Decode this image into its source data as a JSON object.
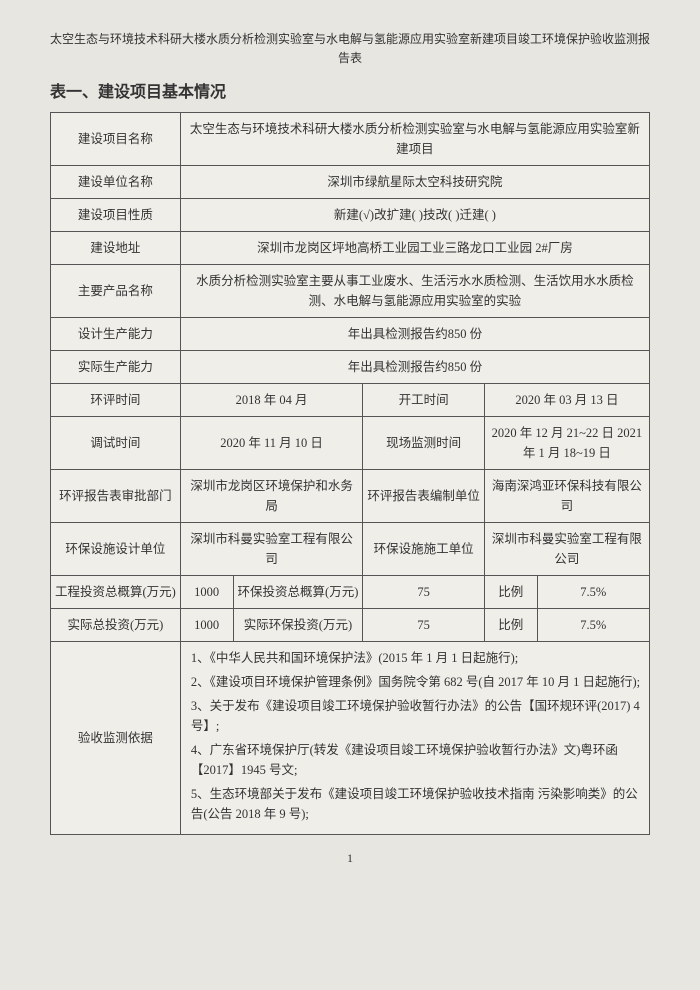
{
  "doc_header": "太空生态与环境技术科研大楼水质分析检测实验室与水电解与氢能源应用实验室新建项目竣工环境保护验收监测报告表",
  "table_title": "表一、建设项目基本情况",
  "rows": {
    "project_name_label": "建设项目名称",
    "project_name_value": "太空生态与环境技术科研大楼水质分析检测实验室与水电解与氢能源应用实验室新建项目",
    "unit_name_label": "建设单位名称",
    "unit_name_value": "深圳市绿航星际太空科技研究院",
    "nature_label": "建设项目性质",
    "nature_value": "新建(√)改扩建( )技改( )迁建( )",
    "address_label": "建设地址",
    "address_value": "深圳市龙岗区坪地高桥工业园工业三路龙口工业园 2#厂房",
    "product_label": "主要产品名称",
    "product_value": "水质分析检测实验室主要从事工业废水、生活污水水质检测、生活饮用水水质检测、水电解与氢能源应用实验室的实验",
    "design_cap_label": "设计生产能力",
    "design_cap_value": "年出具检测报告约850 份",
    "actual_cap_label": "实际生产能力",
    "actual_cap_value": "年出具检测报告约850 份",
    "eia_time_label": "环评时间",
    "eia_time_value": "2018 年 04 月",
    "start_time_label": "开工时间",
    "start_time_value": "2020 年 03 月 13 日",
    "debug_time_label": "调试时间",
    "debug_time_value": "2020 年 11 月 10 日",
    "onsite_time_label": "现场监测时间",
    "onsite_time_value": "2020 年 12 月 21~22 日 2021 年 1 月 18~19 日",
    "approve_dept_label": "环评报告表审批部门",
    "approve_dept_value": "深圳市龙岗区环境保护和水务局",
    "compile_unit_label": "环评报告表编制单位",
    "compile_unit_value": "海南深鸿亚环保科技有限公司",
    "design_unit_label": "环保设施设计单位",
    "design_unit_value": "深圳市科曼实验室工程有限公司",
    "construct_unit_label": "环保设施施工单位",
    "construct_unit_value": "深圳市科曼实验室工程有限公司",
    "total_budget_label": "工程投资总概算(万元)",
    "total_budget_value": "1000",
    "env_budget_label": "环保投资总概算(万元)",
    "env_budget_value": "75",
    "ratio1_label": "比例",
    "ratio1_value": "7.5%",
    "actual_total_label": "实际总投资(万元)",
    "actual_total_value": "1000",
    "actual_env_label": "实际环保投资(万元)",
    "actual_env_value": "75",
    "ratio2_label": "比例",
    "ratio2_value": "7.5%",
    "basis_label": "验收监测依据",
    "basis_items": [
      "1、《中华人民共和国环境保护法》(2015 年 1 月 1 日起施行);",
      "2、《建设项目环境保护管理条例》国务院令第 682 号(自 2017 年 10 月 1 日起施行);",
      "3、关于发布《建设项目竣工环境保护验收暂行办法》的公告【国环规环评(2017) 4 号】;",
      "4、广东省环境保护厅(转发《建设项目竣工环境保护验收暂行办法》文)粤环函【2017】1945 号文;",
      "5、生态环境部关于发布《建设项目竣工环境保护验收技术指南 污染影响类》的公告(公告 2018 年 9 号);"
    ]
  },
  "page_number": "1",
  "col_widths": [
    "16%",
    "12%",
    "14%",
    "14%",
    "12%",
    "10%",
    "22%"
  ],
  "colors": {
    "background": "#e8e6e1",
    "table_bg": "#efeee9",
    "border": "#555555",
    "text": "#333333"
  }
}
